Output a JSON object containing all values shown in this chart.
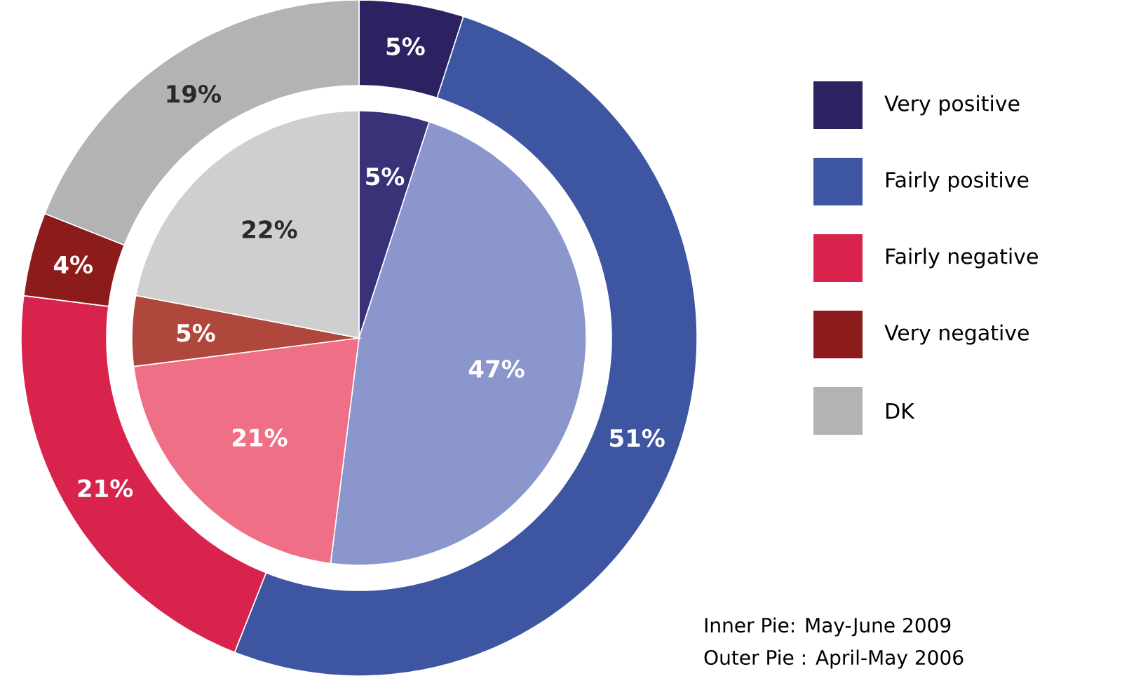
{
  "chart_data": {
    "type": "donut",
    "categories": [
      "Very positive",
      "Fairly positive",
      "Fairly negative",
      "Very negative",
      "DK"
    ],
    "series": [
      {
        "values": [
          5,
          51,
          21,
          4,
          19
        ],
        "value_labels": [
          "5%",
          "51%",
          "21%",
          "4%",
          "19%"
        ],
        "colors": [
          "#2b2262",
          "#3e55a2",
          "#d8234c",
          "#8c1c1c",
          "#b3b3b3"
        ]
      },
      {
        "values": [
          5,
          47,
          21,
          5,
          22
        ],
        "value_labels": [
          "5%",
          "47%",
          "21%",
          "5%",
          "22%"
        ],
        "colors": [
          "#3a3278",
          "#8a96cc",
          "#ee6f86",
          "#b0473c",
          "#cfcfcf"
        ]
      }
    ],
    "legend": "right",
    "annotations": [
      "Inner Pie: May-June 2009",
      "Outer Pie : April-May 2006"
    ]
  }
}
